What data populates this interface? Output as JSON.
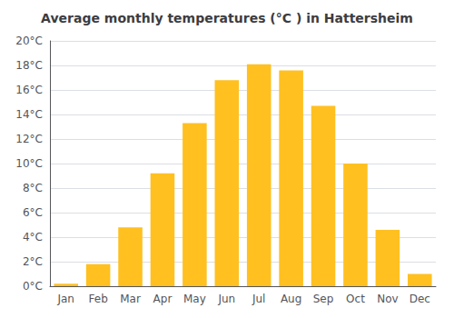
{
  "chart_data": {
    "type": "bar",
    "title": "Average monthly temperatures (°C ) in Hattersheim",
    "categories": [
      "Jan",
      "Feb",
      "Mar",
      "Apr",
      "May",
      "Jun",
      "Jul",
      "Aug",
      "Sep",
      "Oct",
      "Nov",
      "Dec"
    ],
    "values": [
      0.2,
      1.8,
      4.8,
      9.2,
      13.3,
      16.8,
      18.1,
      17.6,
      14.7,
      10.0,
      4.6,
      1.0
    ],
    "color": "#FFC020",
    "ylim": [
      0,
      20
    ],
    "yticks": [
      {
        "value": 0,
        "label": "0°C"
      },
      {
        "value": 2,
        "label": "2°C"
      },
      {
        "value": 4,
        "label": "4°C"
      },
      {
        "value": 6,
        "label": "6°C"
      },
      {
        "value": 8,
        "label": "8°C"
      },
      {
        "value": 10,
        "label": "10°C"
      },
      {
        "value": 12,
        "label": "12°C"
      },
      {
        "value": 14,
        "label": "14°C"
      },
      {
        "value": 16,
        "label": "16°C"
      },
      {
        "value": 18,
        "label": "18°C"
      },
      {
        "value": 20,
        "label": "20°C"
      }
    ],
    "grid": true
  }
}
